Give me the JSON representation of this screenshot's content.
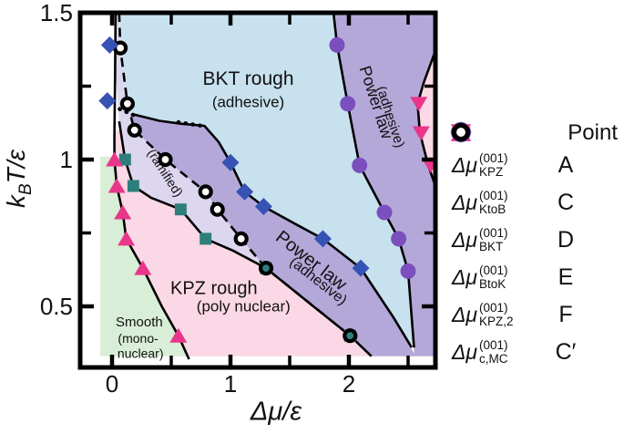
{
  "axes": {
    "x_title": "Δμ/ε",
    "y_title_pre": "k",
    "y_title_sub": "B",
    "y_title_post": "T/ε"
  },
  "legend": {
    "header": "Point",
    "rows": [
      {
        "marker": "triangle-up",
        "color": "#e9368a",
        "main": "Δμ",
        "sup": "(001)",
        "sub": "KPZ",
        "point": "A"
      },
      {
        "marker": "square",
        "color": "#2e7f7c",
        "main": "Δμ",
        "sup": "(001)",
        "sub": "KtoB",
        "point": "C"
      },
      {
        "marker": "diamond",
        "color": "#3752b5",
        "main": "Δμ",
        "sup": "(001)",
        "sub": "BKT",
        "point": "D"
      },
      {
        "marker": "circle",
        "color": "#7b4fbe",
        "main": "Δμ",
        "sup": "(001)",
        "sub": "BtoK",
        "point": "E"
      },
      {
        "marker": "triangle-down",
        "color": "#e9368a",
        "main": "Δμ",
        "sup": "(001)",
        "sub": "KPZ,2",
        "point": "F"
      },
      {
        "marker": "open-circle",
        "color": "#000000",
        "main": "Δμ",
        "sup": "(001)",
        "sub": "c,MC",
        "point": "C′"
      }
    ]
  },
  "chart_data": {
    "type": "scatter",
    "title": "",
    "xlabel": "Δμ/ε",
    "ylabel": "kB T/ε",
    "xlim": [
      -0.27,
      2.73
    ],
    "ylim": [
      0.29,
      1.5
    ],
    "grid": false,
    "legend_position": "right",
    "x_ticks": {
      "major": [
        {
          "v": 0,
          "label": "0"
        },
        {
          "v": 1,
          "label": "1"
        },
        {
          "v": 2,
          "label": "2"
        }
      ],
      "minor": [
        0.5,
        1.5,
        2.5
      ]
    },
    "y_ticks": {
      "major": [
        {
          "v": 1.5,
          "label": "1.5"
        },
        {
          "v": 1,
          "label": "1"
        },
        {
          "v": 0.5,
          "label": "0.5"
        }
      ],
      "minor": [
        1.25,
        0.75
      ]
    },
    "regions": [
      {
        "name": "smooth-mononuclear",
        "fill": "#d9eed6",
        "points": [
          [
            -0.1,
            1.01
          ],
          [
            0.02,
            1.01
          ],
          [
            0.02,
            1.0
          ],
          [
            0.04,
            0.91
          ],
          [
            0.09,
            0.82
          ],
          [
            0.12,
            0.73
          ],
          [
            0.26,
            0.63
          ],
          [
            0.42,
            0.5
          ],
          [
            0.56,
            0.4
          ],
          [
            0.64,
            0.33
          ],
          [
            -0.1,
            0.33
          ]
        ]
      },
      {
        "name": "kpz-rough-polynuclear",
        "fill": "#fbd8e5",
        "points": [
          [
            0.02,
            1.1
          ],
          [
            0.07,
            1.1
          ],
          [
            0.11,
            1.0
          ],
          [
            0.18,
            0.91
          ],
          [
            0.33,
            0.87
          ],
          [
            0.58,
            0.83
          ],
          [
            0.79,
            0.73
          ],
          [
            1.02,
            0.69
          ],
          [
            1.3,
            0.63
          ],
          [
            1.7,
            0.5
          ],
          [
            2.01,
            0.4
          ],
          [
            2.19,
            0.33
          ],
          [
            0.62,
            0.33
          ],
          [
            0.56,
            0.4
          ],
          [
            0.42,
            0.5
          ],
          [
            0.26,
            0.63
          ],
          [
            0.12,
            0.73
          ],
          [
            0.09,
            0.82
          ],
          [
            0.04,
            0.91
          ],
          [
            0.02,
            1.0
          ]
        ]
      },
      {
        "name": "powerlaw-ramified",
        "fill": "#ddd6ef",
        "points": [
          [
            0.03,
            1.5
          ],
          [
            0.06,
            1.5
          ],
          [
            0.07,
            1.38
          ],
          [
            0.13,
            1.19
          ],
          [
            0.19,
            1.1
          ],
          [
            0.45,
            1.0
          ],
          [
            0.79,
            0.89
          ],
          [
            0.89,
            0.83
          ],
          [
            1.09,
            0.73
          ],
          [
            1.3,
            0.63
          ],
          [
            1.02,
            0.69
          ],
          [
            0.79,
            0.73
          ],
          [
            0.58,
            0.83
          ],
          [
            0.33,
            0.87
          ],
          [
            0.18,
            0.91
          ],
          [
            0.11,
            1.0
          ],
          [
            0.06,
            1.13
          ],
          [
            0.03,
            1.3
          ]
        ]
      },
      {
        "name": "powerlaw-adhesive-mid",
        "fill": "#b4a8d9",
        "points": [
          [
            0.07,
            1.17
          ],
          [
            0.17,
            1.155
          ],
          [
            0.58,
            1.122
          ],
          [
            0.78,
            1.115
          ],
          [
            0.9,
            1.06
          ],
          [
            1.0,
            0.99
          ],
          [
            1.12,
            0.89
          ],
          [
            1.28,
            0.84
          ],
          [
            1.55,
            0.78
          ],
          [
            1.78,
            0.73
          ],
          [
            2.1,
            0.63
          ],
          [
            2.38,
            0.46
          ],
          [
            2.55,
            0.34
          ],
          [
            2.55,
            0.33
          ],
          [
            2.19,
            0.33
          ],
          [
            2.01,
            0.4
          ],
          [
            1.3,
            0.63
          ],
          [
            1.09,
            0.73
          ],
          [
            0.89,
            0.83
          ],
          [
            0.79,
            0.89
          ],
          [
            0.45,
            1.0
          ],
          [
            0.19,
            1.1
          ],
          [
            0.13,
            1.19
          ]
        ]
      },
      {
        "name": "bkt-rough-adhesive",
        "fill": "#c8e1ee",
        "points": [
          [
            0.06,
            1.5
          ],
          [
            0.07,
            1.38
          ],
          [
            0.13,
            1.19
          ],
          [
            0.08,
            1.17
          ],
          [
            0.17,
            1.155
          ],
          [
            0.58,
            1.122
          ],
          [
            0.78,
            1.115
          ],
          [
            0.9,
            1.06
          ],
          [
            1.0,
            0.99
          ],
          [
            1.12,
            0.89
          ],
          [
            1.28,
            0.84
          ],
          [
            1.55,
            0.78
          ],
          [
            1.78,
            0.73
          ],
          [
            2.1,
            0.63
          ],
          [
            2.38,
            0.46
          ],
          [
            2.55,
            0.36
          ],
          [
            2.5,
            0.62
          ],
          [
            2.42,
            0.73
          ],
          [
            2.3,
            0.82
          ],
          [
            2.09,
            0.98
          ],
          [
            1.99,
            1.19
          ],
          [
            1.9,
            1.39
          ],
          [
            1.87,
            1.5
          ]
        ]
      },
      {
        "name": "powerlaw-adhesive-right",
        "fill": "#b4a8d9",
        "points": [
          [
            1.87,
            1.5
          ],
          [
            1.9,
            1.39
          ],
          [
            1.99,
            1.19
          ],
          [
            2.09,
            0.98
          ],
          [
            2.3,
            0.82
          ],
          [
            2.42,
            0.73
          ],
          [
            2.5,
            0.62
          ],
          [
            2.55,
            0.36
          ],
          [
            2.55,
            0.33
          ],
          [
            2.73,
            0.33
          ],
          [
            2.73,
            1.5
          ]
        ]
      },
      {
        "name": "kpz-rough-right-sliver",
        "fill": "#fbd8e5",
        "points": [
          [
            2.73,
            1.37
          ],
          [
            2.63,
            1.26
          ],
          [
            2.58,
            1.19
          ],
          [
            2.6,
            1.09
          ],
          [
            2.67,
            0.98
          ],
          [
            2.73,
            0.91
          ]
        ]
      }
    ],
    "boundaries": [
      {
        "name": "kpz-line",
        "style": "solid",
        "points": [
          [
            0.03,
            1.5
          ],
          [
            0.025,
            1.28
          ],
          [
            0.02,
            1.08
          ],
          [
            0.02,
            1.0
          ],
          [
            0.04,
            0.91
          ],
          [
            0.09,
            0.82
          ],
          [
            0.12,
            0.73
          ],
          [
            0.26,
            0.63
          ],
          [
            0.42,
            0.5
          ],
          [
            0.56,
            0.4
          ],
          [
            0.65,
            0.32
          ]
        ]
      },
      {
        "name": "ktob-line",
        "style": "solid",
        "points": [
          [
            0.06,
            1.13
          ],
          [
            0.11,
            1.0
          ],
          [
            0.18,
            0.91
          ],
          [
            0.33,
            0.87
          ],
          [
            0.58,
            0.83
          ],
          [
            0.79,
            0.73
          ],
          [
            1.02,
            0.69
          ],
          [
            1.3,
            0.63
          ],
          [
            1.7,
            0.5
          ],
          [
            2.01,
            0.4
          ],
          [
            2.19,
            0.33
          ]
        ]
      },
      {
        "name": "mc-line",
        "style": "dashed",
        "points": [
          [
            0.06,
            1.5
          ],
          [
            0.07,
            1.38
          ],
          [
            0.13,
            1.19
          ],
          [
            0.19,
            1.1
          ],
          [
            0.45,
            1.0
          ],
          [
            0.79,
            0.89
          ],
          [
            0.89,
            0.83
          ],
          [
            1.09,
            0.73
          ],
          [
            1.3,
            0.63
          ],
          [
            2.01,
            0.4
          ]
        ]
      },
      {
        "name": "bkt-line",
        "style": "solid",
        "points": [
          [
            0.17,
            1.155
          ],
          [
            0.4,
            1.132
          ],
          [
            0.58,
            1.122
          ],
          [
            0.78,
            1.115
          ],
          [
            0.9,
            1.06
          ],
          [
            1.0,
            0.99
          ],
          [
            1.12,
            0.89
          ],
          [
            1.28,
            0.84
          ],
          [
            1.55,
            0.78
          ],
          [
            1.78,
            0.73
          ],
          [
            2.1,
            0.63
          ],
          [
            2.38,
            0.46
          ],
          [
            2.53,
            0.36
          ]
        ]
      },
      {
        "name": "bkt-dots-1",
        "style": "dotted",
        "points": [
          [
            0.065,
            1.172
          ],
          [
            0.18,
            1.152
          ]
        ]
      },
      {
        "name": "bkt-dots-2",
        "style": "dotted",
        "points": [
          [
            0.56,
            1.127
          ],
          [
            0.79,
            1.113
          ]
        ]
      },
      {
        "name": "btok-line",
        "style": "solid",
        "points": [
          [
            1.87,
            1.5
          ],
          [
            1.9,
            1.39
          ],
          [
            1.99,
            1.19
          ],
          [
            2.09,
            0.98
          ],
          [
            2.3,
            0.82
          ],
          [
            2.42,
            0.73
          ],
          [
            2.5,
            0.62
          ],
          [
            2.55,
            0.36
          ]
        ]
      },
      {
        "name": "kpz2-line",
        "style": "solid",
        "points": [
          [
            2.73,
            1.37
          ],
          [
            2.63,
            1.26
          ],
          [
            2.58,
            1.19
          ],
          [
            2.6,
            1.09
          ],
          [
            2.67,
            0.98
          ],
          [
            2.73,
            0.91
          ]
        ]
      }
    ],
    "series": [
      {
        "id": "ktob",
        "label": "Δμ_KtoB^(001)",
        "point_label": "C",
        "marker": "square",
        "color": "#2e7f7c",
        "points": [
          [
            0.11,
            1.0
          ],
          [
            0.18,
            0.91
          ],
          [
            0.58,
            0.83
          ],
          [
            0.79,
            0.73
          ],
          [
            1.3,
            0.63
          ],
          [
            2.01,
            0.4
          ]
        ]
      },
      {
        "id": "mc",
        "label": "Δμ_c,MC^(001)",
        "point_label": "C′",
        "marker": "open-circle",
        "color": "#000000",
        "points": [
          [
            0.07,
            1.38
          ],
          [
            0.13,
            1.19
          ],
          [
            0.19,
            1.1
          ],
          [
            0.45,
            1.0
          ],
          [
            0.79,
            0.89
          ],
          [
            0.89,
            0.83
          ],
          [
            1.09,
            0.73
          ],
          [
            1.3,
            0.63
          ],
          [
            2.01,
            0.4
          ]
        ],
        "on_square": [
          false,
          false,
          false,
          false,
          false,
          false,
          false,
          true,
          true
        ]
      },
      {
        "id": "kpz",
        "label": "Δμ_KPZ^(001)",
        "point_label": "A",
        "marker": "triangle-up",
        "color": "#e9368a",
        "points": [
          [
            0.02,
            1.0
          ],
          [
            0.04,
            0.91
          ],
          [
            0.09,
            0.82
          ],
          [
            0.12,
            0.73
          ],
          [
            0.26,
            0.63
          ],
          [
            0.56,
            0.4
          ]
        ]
      },
      {
        "id": "bkt",
        "label": "Δμ_BKT^(001)",
        "point_label": "D",
        "marker": "diamond",
        "color": "#3752b5",
        "points": [
          [
            -0.02,
            1.39
          ],
          [
            -0.04,
            1.2
          ],
          [
            1.0,
            0.99
          ],
          [
            1.12,
            0.89
          ],
          [
            1.28,
            0.84
          ],
          [
            1.78,
            0.73
          ],
          [
            2.1,
            0.63
          ]
        ]
      },
      {
        "id": "btok",
        "label": "Δμ_BtoK^(001)",
        "point_label": "E",
        "marker": "circle",
        "color": "#7b4fbe",
        "points": [
          [
            1.9,
            1.39
          ],
          [
            1.99,
            1.19
          ],
          [
            2.09,
            0.98
          ],
          [
            2.3,
            0.82
          ],
          [
            2.42,
            0.73
          ],
          [
            2.5,
            0.62
          ]
        ]
      },
      {
        "id": "kpz2",
        "label": "Δμ_KPZ,2^(001)",
        "point_label": "F",
        "marker": "triangle-down",
        "color": "#e9368a",
        "points": [
          [
            2.59,
            1.19
          ],
          [
            2.61,
            1.09
          ],
          [
            2.69,
            0.98
          ]
        ]
      }
    ],
    "region_labels": [
      {
        "text": "BKT rough",
        "x": 1.15,
        "y": 1.275,
        "rot": 0,
        "size": 21
      },
      {
        "text": "(adhesive)",
        "x": 1.15,
        "y": 1.195,
        "rot": 0,
        "size": 17
      },
      {
        "text": "(ramified)",
        "x": 0.45,
        "y": 0.955,
        "rot": 57,
        "size": 14
      },
      {
        "text": "Power law",
        "x": 1.68,
        "y": 0.655,
        "rot": 38,
        "size": 20
      },
      {
        "text": "(adhesive)",
        "x": 1.74,
        "y": 0.585,
        "rot": 38,
        "size": 16
      },
      {
        "text": "Power law",
        "x": 2.23,
        "y": 1.195,
        "rot": 72,
        "size": 18
      },
      {
        "text": "(adhesive)",
        "x": 2.35,
        "y": 1.145,
        "rot": 72,
        "size": 15
      },
      {
        "text": "KPZ rough",
        "x": 0.86,
        "y": 0.56,
        "rot": 0,
        "size": 20
      },
      {
        "text": "(poly nuclear)",
        "x": 1.11,
        "y": 0.5,
        "rot": 0,
        "size": 17
      },
      {
        "text": "Smooth",
        "x": 0.23,
        "y": 0.445,
        "rot": 0,
        "size": 15
      },
      {
        "text": "(mono-",
        "x": 0.22,
        "y": 0.392,
        "rot": 0,
        "size": 14
      },
      {
        "text": "nuclear)",
        "x": 0.24,
        "y": 0.34,
        "rot": 0,
        "size": 14
      }
    ]
  }
}
